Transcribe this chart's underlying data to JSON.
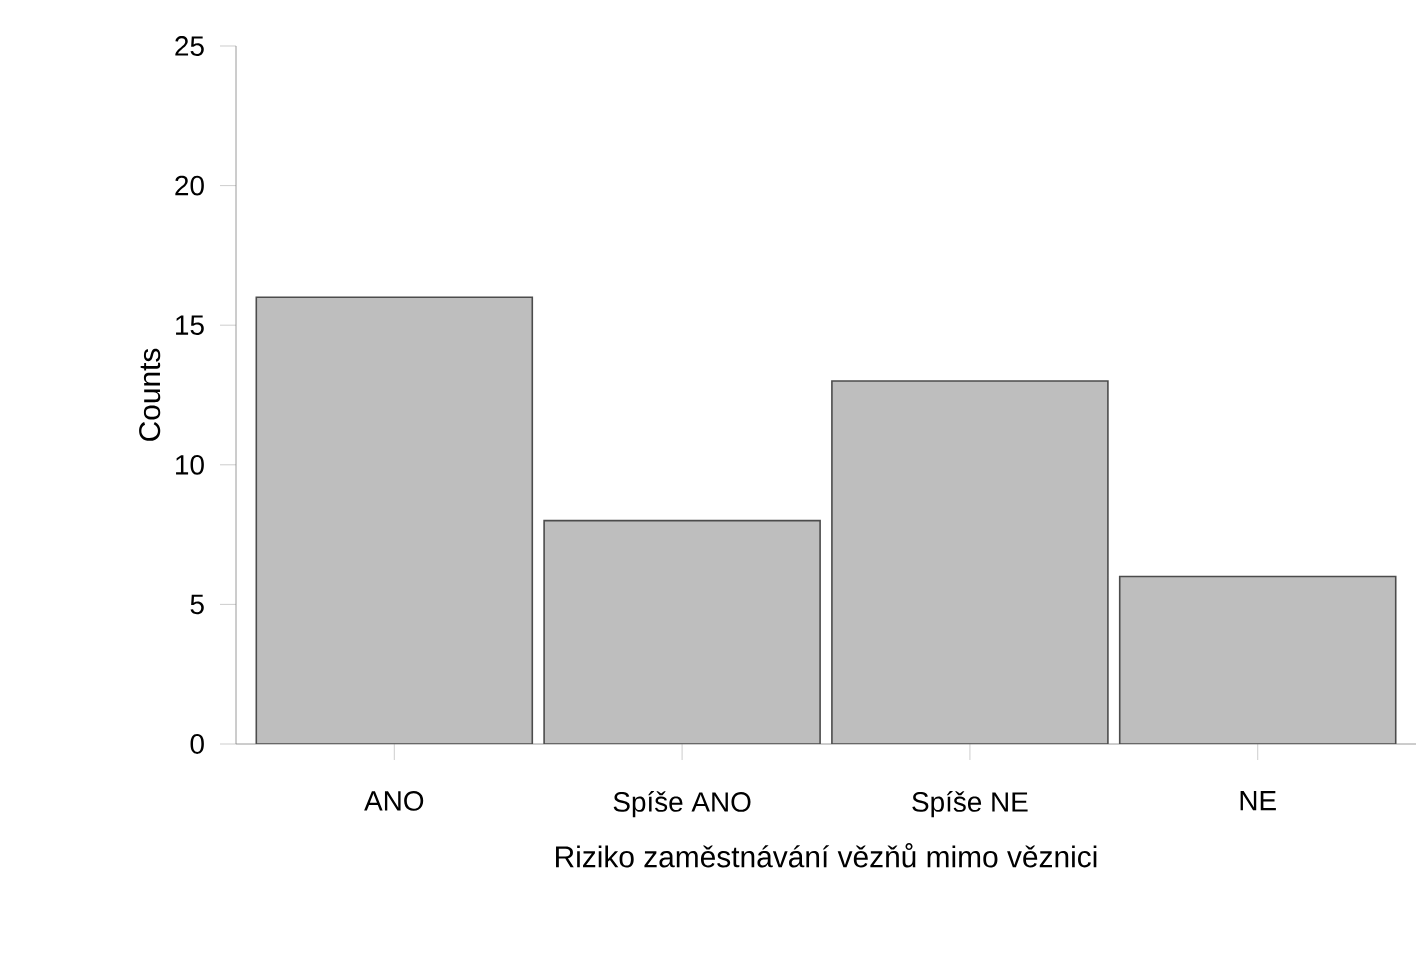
{
  "chart_data": {
    "type": "bar",
    "xlabel": "Riziko zaměstnávání vězňů mimo věznici",
    "ylabel": "Counts",
    "categories": [
      "ANO",
      "Spíše ANO",
      "Spíše NE",
      "NE"
    ],
    "values": [
      16,
      8,
      13,
      6
    ],
    "color": "#bebebe",
    "ylim": [
      0,
      25
    ],
    "yticks": [
      0,
      5,
      10,
      15,
      20,
      25
    ],
    "grid": false
  }
}
